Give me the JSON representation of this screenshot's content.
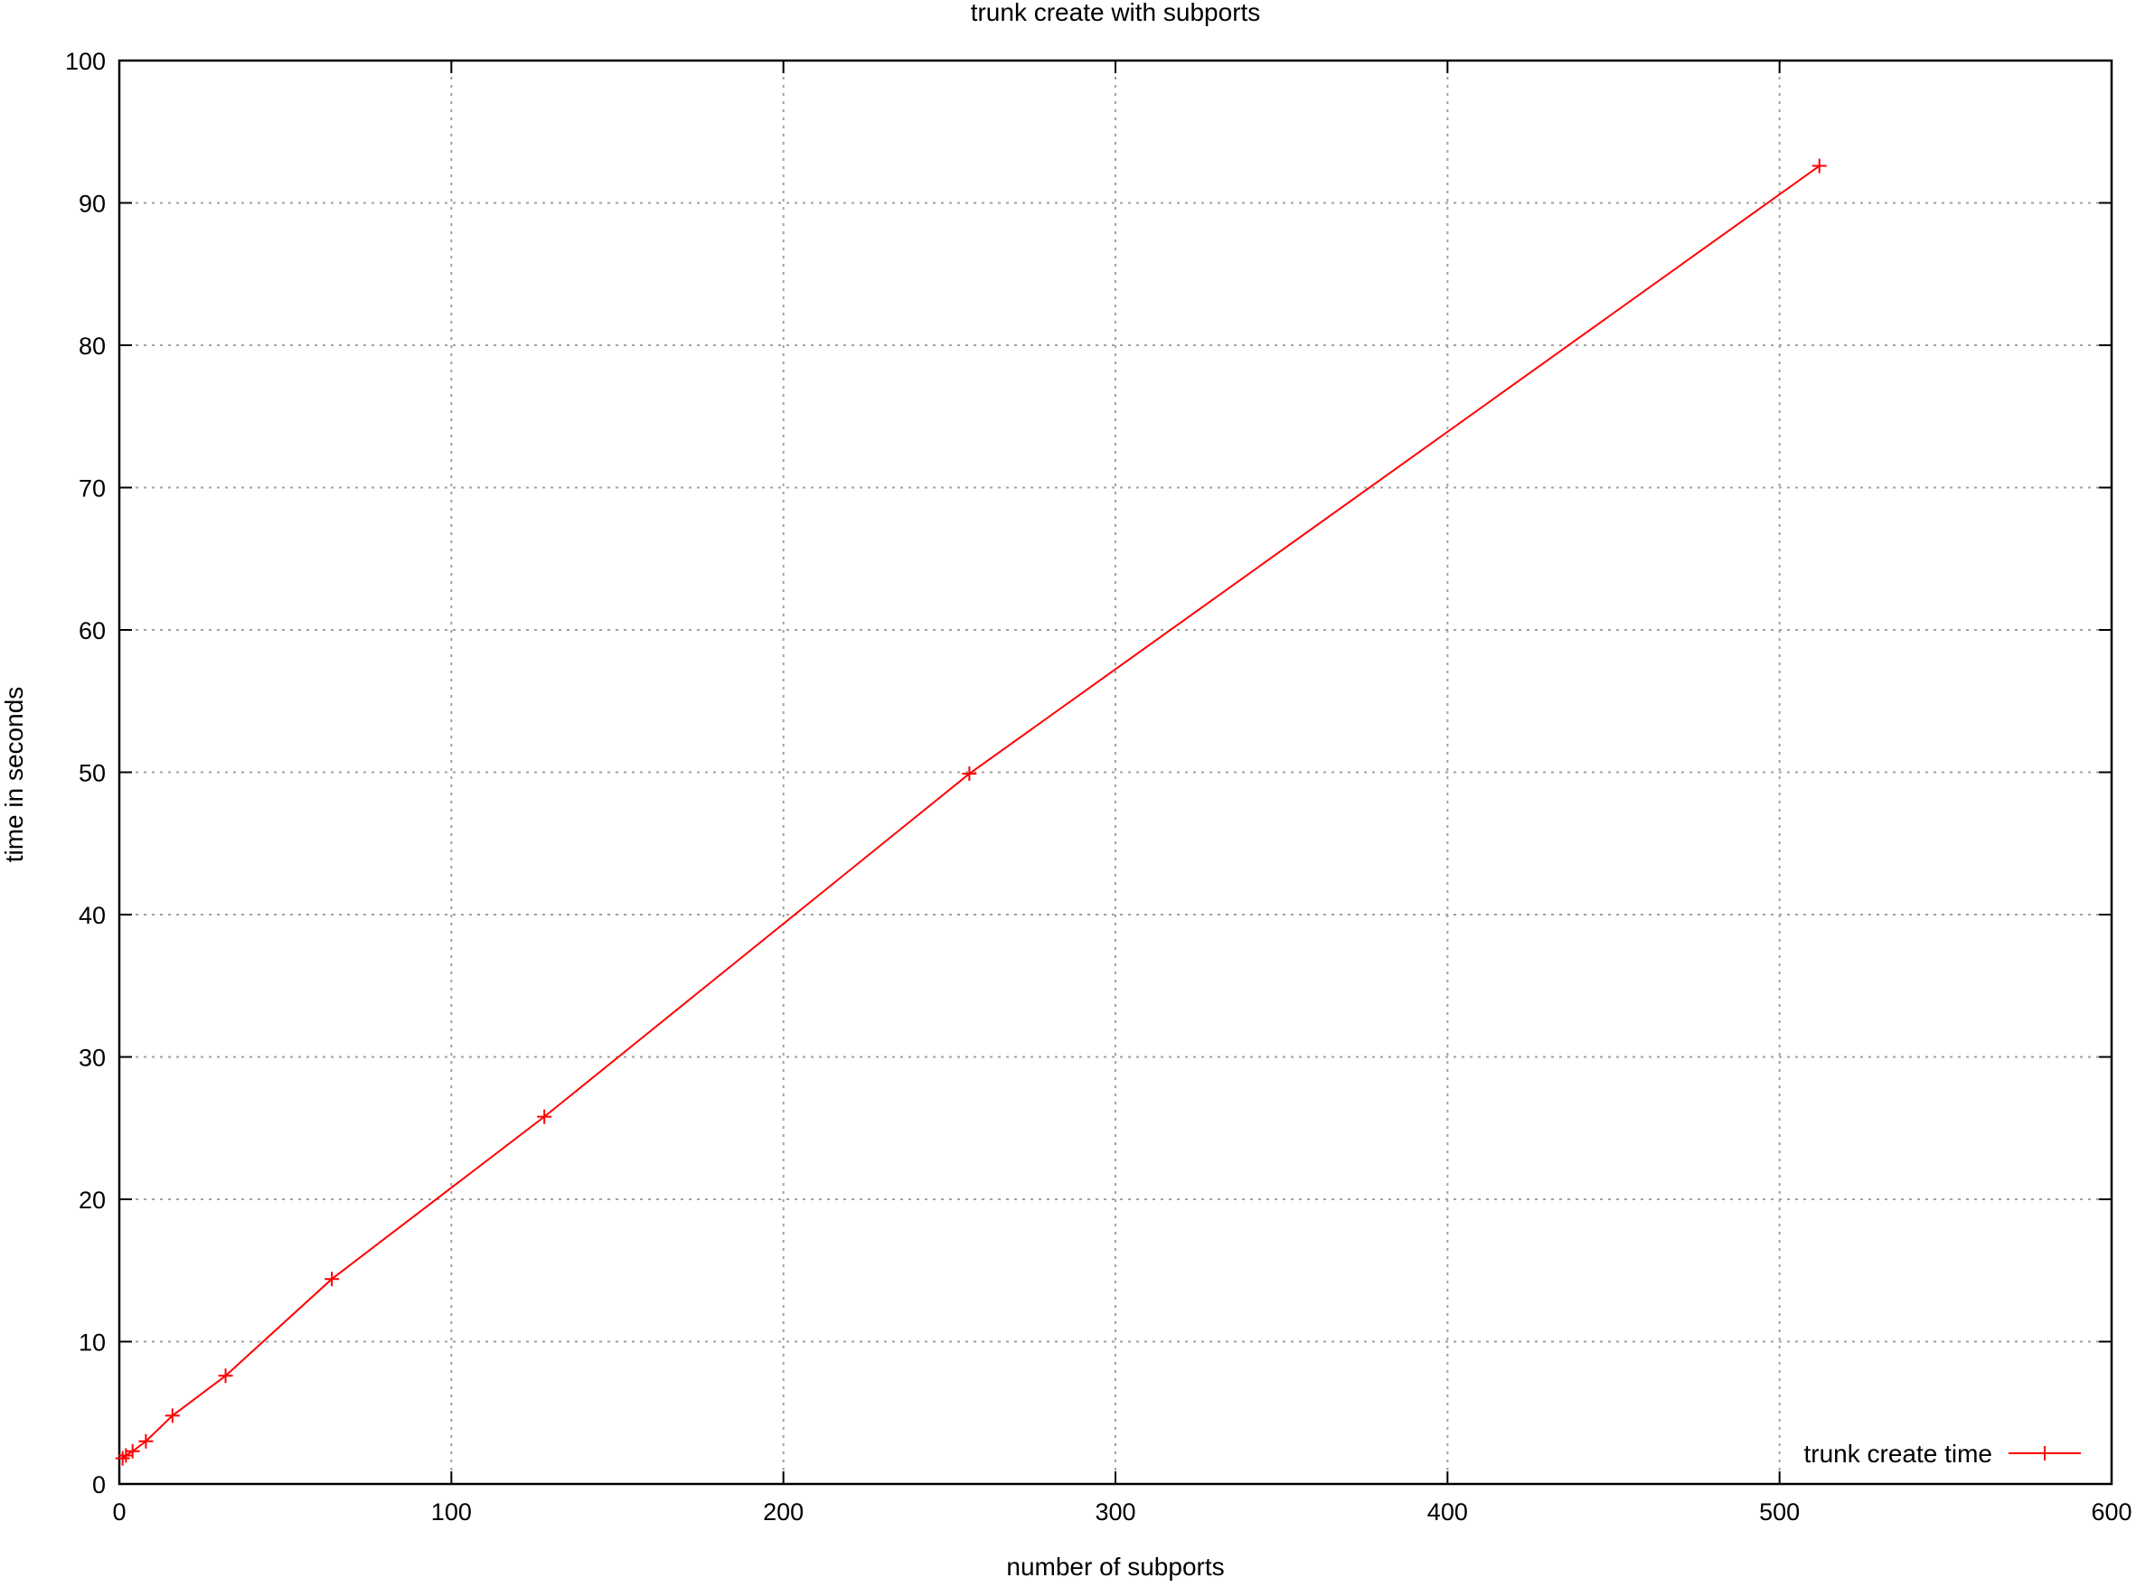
{
  "chart_data": {
    "type": "line",
    "title": "trunk create with subports",
    "xlabel": "number of subports",
    "ylabel": "time in seconds",
    "xlim": [
      0,
      600
    ],
    "ylim": [
      0,
      100
    ],
    "x_ticks": [
      0,
      100,
      200,
      300,
      400,
      500,
      600
    ],
    "y_ticks": [
      0,
      10,
      20,
      30,
      40,
      50,
      60,
      70,
      80,
      90,
      100
    ],
    "grid": true,
    "legend_position": "bottom-right",
    "series": [
      {
        "name": "trunk create time",
        "color": "#ff0000",
        "marker": "plus",
        "x": [
          1,
          2,
          4,
          8,
          16,
          32,
          64,
          128,
          256,
          512
        ],
        "y": [
          1.8,
          2.0,
          2.3,
          3.0,
          4.8,
          7.6,
          14.4,
          25.8,
          49.9,
          92.6
        ]
      }
    ]
  }
}
